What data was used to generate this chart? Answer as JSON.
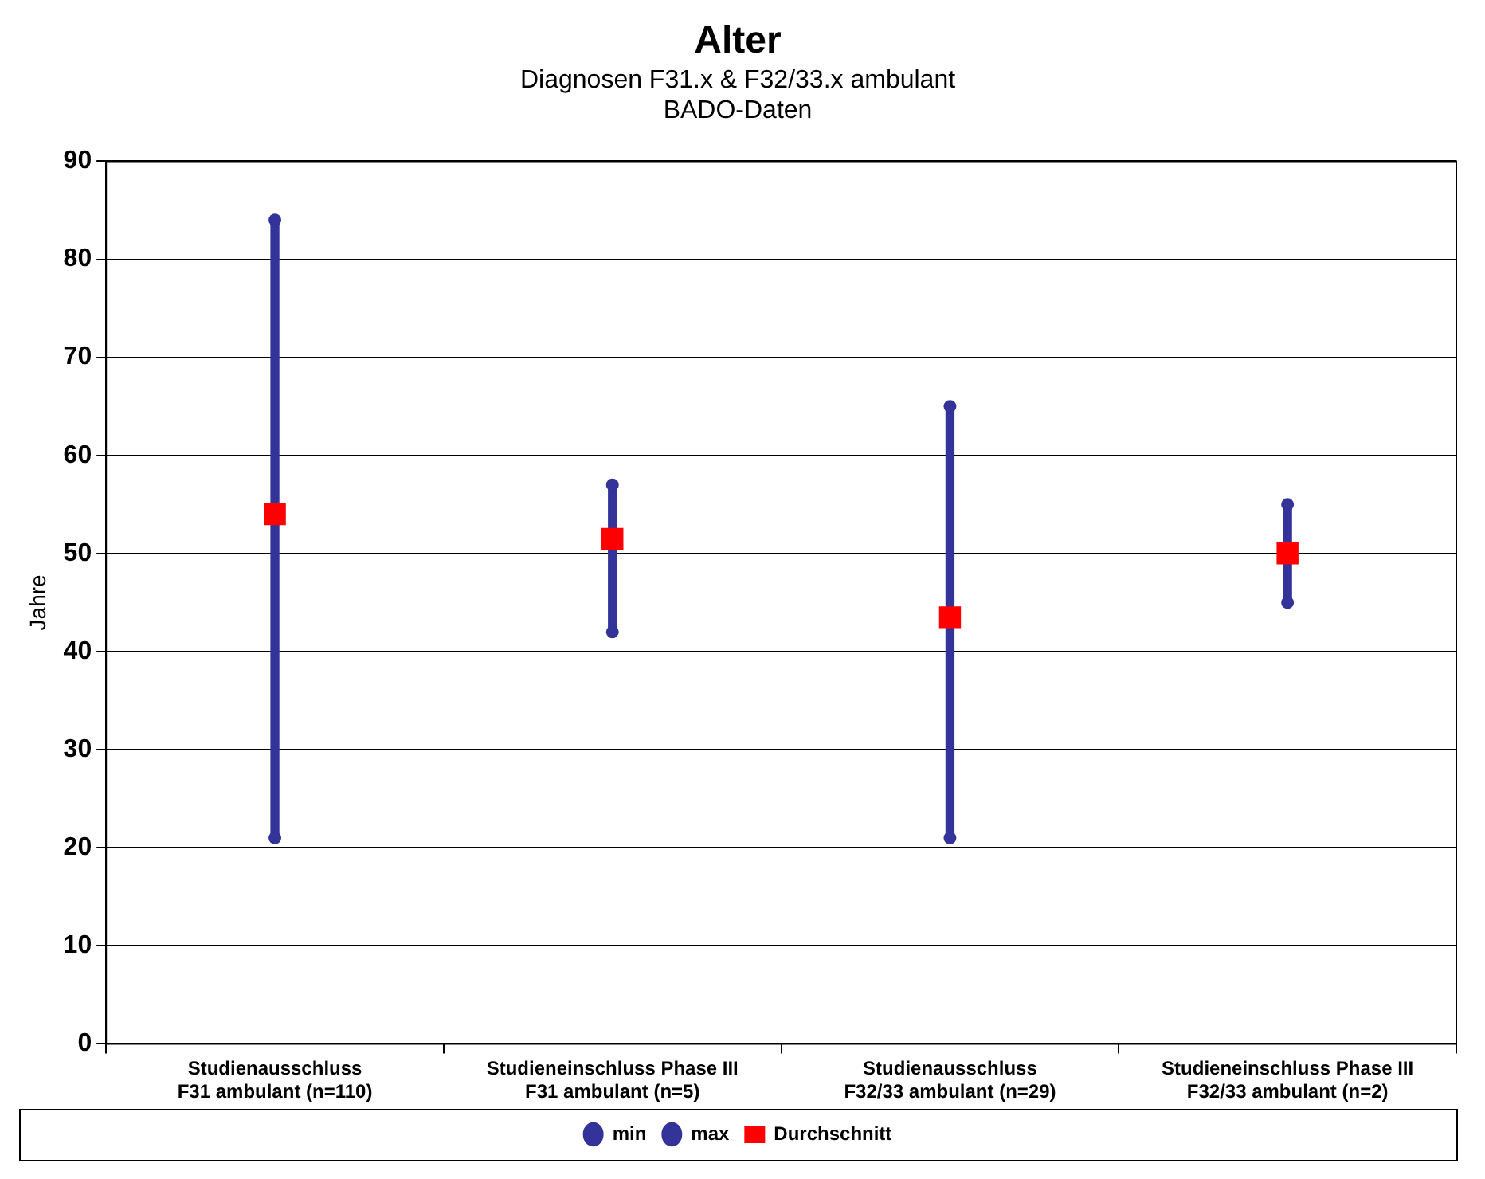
{
  "chart_data": {
    "type": "bar",
    "title": "Alter",
    "subtitle": "Diagnosen F31.x & F32/33.x ambulant\nBADO-Daten",
    "ylabel": "Jahre",
    "categories": [
      "Studienausschluss\nF31 ambulant (n=110)",
      "Studieneinschluss Phase III\nF31 ambulant (n=5)",
      "Studienausschluss\nF32/33 ambulant (n=29)",
      "Studieneinschluss Phase III\nF32/33 ambulant (n=2)"
    ],
    "series": [
      {
        "color": "#333399",
        "base": [
          21,
          42,
          21,
          45
        ],
        "values": [
          63,
          15,
          44,
          10
        ]
      },
      {
        "name": "min",
        "type": "scatter",
        "marker": "circle",
        "color": "#333399",
        "values": [
          21,
          42,
          21,
          45
        ]
      },
      {
        "name": "max",
        "type": "scatter",
        "marker": "circle",
        "color": "#333399",
        "values": [
          84,
          57,
          65,
          55
        ]
      },
      {
        "name": "Durchschnitt",
        "type": "scatter",
        "marker": "square",
        "color": "#ff0000",
        "values": [
          54,
          51.5,
          43.5,
          50
        ]
      }
    ],
    "ylim": [
      0,
      90
    ],
    "yticks": [
      0,
      10,
      20,
      30,
      40,
      50,
      60,
      70,
      80,
      90
    ],
    "grid": "y",
    "legend": "bottom"
  }
}
